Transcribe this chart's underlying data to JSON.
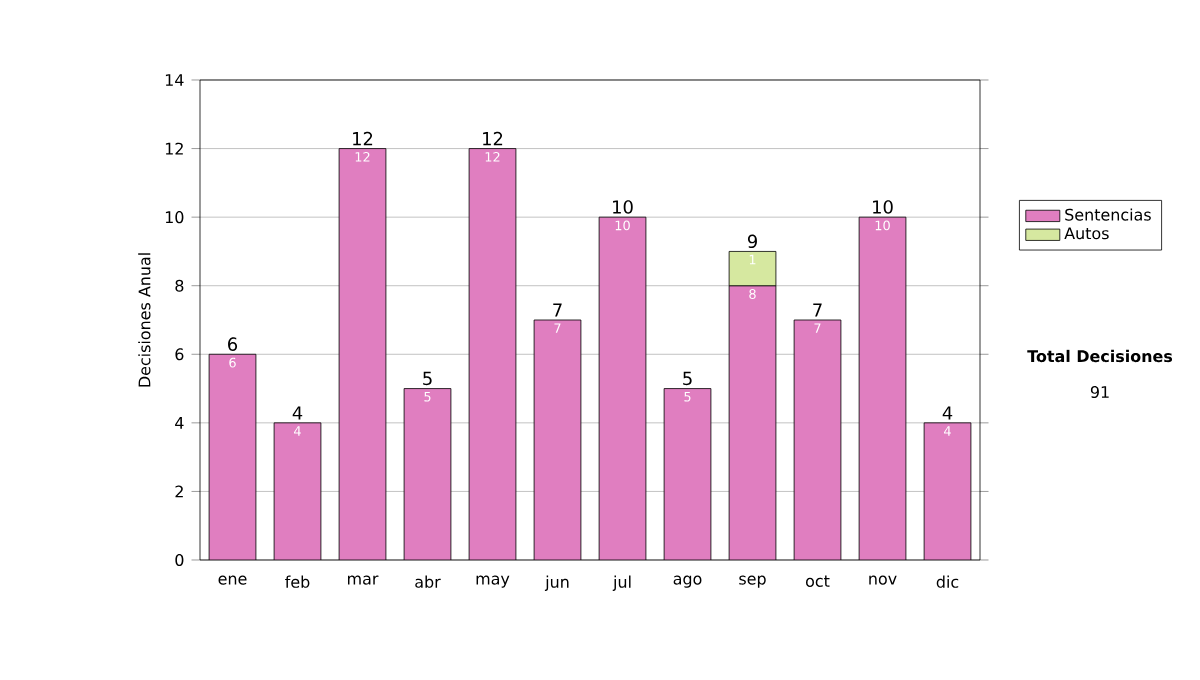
{
  "chart_data": {
    "type": "bar",
    "stacked": true,
    "ylabel": "Decisiones Anual",
    "categories": [
      "ene",
      "feb",
      "mar",
      "abr",
      "may",
      "jun",
      "jul",
      "ago",
      "sep",
      "oct",
      "nov",
      "dic"
    ],
    "series": [
      {
        "name": "Sentencias",
        "color": "#e07ec0",
        "values": [
          6,
          4,
          12,
          5,
          12,
          7,
          10,
          5,
          8,
          7,
          10,
          4
        ]
      },
      {
        "name": "Autos",
        "color": "#d6e8a0",
        "values": [
          null,
          null,
          null,
          null,
          null,
          null,
          null,
          null,
          1,
          null,
          null,
          null
        ]
      }
    ],
    "totals": [
      "6",
      "4",
      "12",
      "5",
      "12",
      "7",
      "10",
      "5",
      "9",
      "7",
      "10",
      "4"
    ],
    "data_labels": true,
    "ylim": [
      0,
      14
    ],
    "yticks": [
      0,
      2,
      4,
      6,
      8,
      10,
      12,
      14
    ],
    "grid": "y",
    "legend": "right",
    "annotations": [
      "Total Decisiones",
      "91"
    ]
  }
}
